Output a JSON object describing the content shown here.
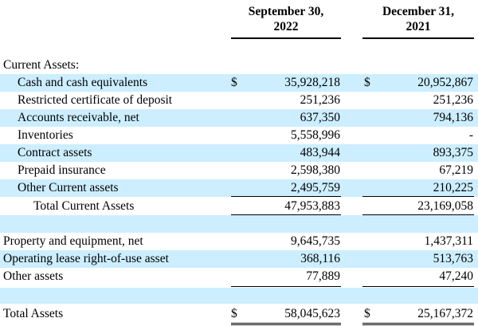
{
  "header": {
    "col1_line1": "September 30,",
    "col1_line2": "2022",
    "col2_line1": "December 31,",
    "col2_line2": "2021"
  },
  "section_current": "Current Assets:",
  "current_items": [
    {
      "label": "Cash and cash equivalents",
      "cur1": "$",
      "v1": "35,928,218",
      "cur2": "$",
      "v2": "20,952,867"
    },
    {
      "label": "Restricted certificate of deposit",
      "cur1": "",
      "v1": "251,236",
      "cur2": "",
      "v2": "251,236"
    },
    {
      "label": "Accounts receivable, net",
      "cur1": "",
      "v1": "637,350",
      "cur2": "",
      "v2": "794,136"
    },
    {
      "label": "Inventories",
      "cur1": "",
      "v1": "5,558,996",
      "cur2": "",
      "v2": "-"
    },
    {
      "label": "Contract assets",
      "cur1": "",
      "v1": "483,944",
      "cur2": "",
      "v2": "893,375"
    },
    {
      "label": "Prepaid insurance",
      "cur1": "",
      "v1": "2,598,380",
      "cur2": "",
      "v2": "67,219"
    },
    {
      "label": "Other Current assets",
      "cur1": "",
      "v1": "2,495,759",
      "cur2": "",
      "v2": "210,225"
    }
  ],
  "total_current": {
    "label": "Total Current Assets",
    "v1": "47,953,883",
    "v2": "23,169,058"
  },
  "noncurrent_items": [
    {
      "label": "Property and equipment, net",
      "v1": "9,645,735",
      "v2": "1,437,311"
    },
    {
      "label": "Operating lease right-of-use asset",
      "v1": "368,116",
      "v2": "513,763"
    },
    {
      "label": "Other assets",
      "v1": "77,889",
      "v2": "47,240"
    }
  ],
  "total_assets": {
    "label": "Total Assets",
    "cur1": "$",
    "v1": "58,045,623",
    "cur2": "$",
    "v2": "25,167,372"
  },
  "colors": {
    "shade": "#cceeff",
    "text": "#000000"
  }
}
